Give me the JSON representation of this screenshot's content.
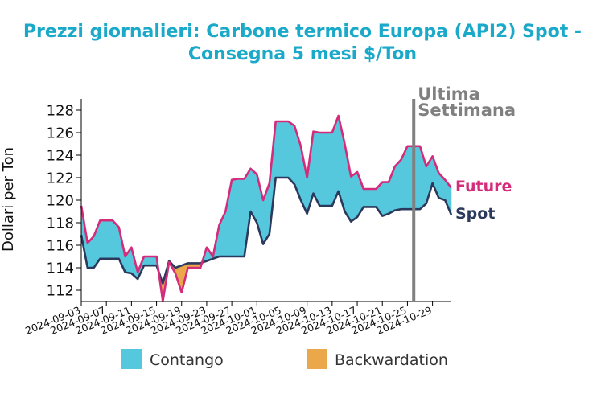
{
  "title_line1": "Prezzi giornalieri: Carbone termico Europa (API2) Spot -",
  "title_line2": "Consegna 5 mesi $/Ton",
  "chart_data": {
    "type": "area",
    "title": "Prezzi giornalieri: Carbone termico Europa (API2) Spot - Consegna 5 mesi $/Ton",
    "ylabel": "Dollari per Ton",
    "xlabel": "",
    "ylim": [
      111,
      129
    ],
    "yticks": [
      112,
      114,
      116,
      118,
      120,
      122,
      124,
      126,
      128
    ],
    "xlim": [
      "2024-09-03",
      "2024-11-01"
    ],
    "xticks": [
      "2024-09-03",
      "2024-09-07",
      "2024-09-11",
      "2024-09-15",
      "2024-09-19",
      "2024-09-23",
      "2024-09-27",
      "2024-10-01",
      "2024-10-05",
      "2024-10-09",
      "2024-10-13",
      "2024-10-17",
      "2024-10-21",
      "2024-10-25",
      "2024-10-29"
    ],
    "marker": {
      "date": "2024-10-26",
      "label_line1": "Ultima",
      "label_line2": "Settimana",
      "color": "#808080"
    },
    "series": [
      {
        "name": "Future",
        "color": "#d42b7b",
        "points": [
          [
            "2024-09-03",
            119.5
          ],
          [
            "2024-09-04",
            116.2
          ],
          [
            "2024-09-05",
            116.8
          ],
          [
            "2024-09-06",
            118.2
          ],
          [
            "2024-09-07",
            118.2
          ],
          [
            "2024-09-08",
            118.2
          ],
          [
            "2024-09-09",
            117.6
          ],
          [
            "2024-09-10",
            115.0
          ],
          [
            "2024-09-11",
            115.8
          ],
          [
            "2024-09-12",
            113.6
          ],
          [
            "2024-09-13",
            115.0
          ],
          [
            "2024-09-14",
            115.0
          ],
          [
            "2024-09-15",
            115.0
          ],
          [
            "2024-09-16",
            111.0
          ],
          [
            "2024-09-17",
            114.5
          ],
          [
            "2024-09-18",
            113.5
          ],
          [
            "2024-09-19",
            111.8
          ],
          [
            "2024-09-20",
            114.0
          ],
          [
            "2024-09-21",
            114.0
          ],
          [
            "2024-09-22",
            114.0
          ],
          [
            "2024-09-23",
            115.8
          ],
          [
            "2024-09-24",
            115.0
          ],
          [
            "2024-09-25",
            117.8
          ],
          [
            "2024-09-26",
            119.0
          ],
          [
            "2024-09-27",
            121.8
          ],
          [
            "2024-09-28",
            121.9
          ],
          [
            "2024-09-29",
            121.9
          ],
          [
            "2024-09-30",
            122.8
          ],
          [
            "2024-10-01",
            122.3
          ],
          [
            "2024-10-02",
            120.0
          ],
          [
            "2024-10-03",
            121.5
          ],
          [
            "2024-10-04",
            127.0
          ],
          [
            "2024-10-05",
            127.0
          ],
          [
            "2024-10-06",
            127.0
          ],
          [
            "2024-10-07",
            126.6
          ],
          [
            "2024-10-08",
            124.8
          ],
          [
            "2024-10-09",
            122.0
          ],
          [
            "2024-10-10",
            126.1
          ],
          [
            "2024-10-11",
            126.0
          ],
          [
            "2024-10-12",
            126.0
          ],
          [
            "2024-10-13",
            126.0
          ],
          [
            "2024-10-14",
            127.5
          ],
          [
            "2024-10-15",
            125.0
          ],
          [
            "2024-10-16",
            122.1
          ],
          [
            "2024-10-17",
            122.5
          ],
          [
            "2024-10-18",
            121.0
          ],
          [
            "2024-10-19",
            121.0
          ],
          [
            "2024-10-20",
            121.0
          ],
          [
            "2024-10-21",
            121.6
          ],
          [
            "2024-10-22",
            121.6
          ],
          [
            "2024-10-23",
            123.0
          ],
          [
            "2024-10-24",
            123.6
          ],
          [
            "2024-10-25",
            124.8
          ],
          [
            "2024-10-26",
            124.8
          ],
          [
            "2024-10-27",
            124.8
          ],
          [
            "2024-10-28",
            123.0
          ],
          [
            "2024-10-29",
            123.9
          ],
          [
            "2024-10-30",
            122.4
          ],
          [
            "2024-10-31",
            121.8
          ],
          [
            "2024-11-01",
            121.1
          ]
        ]
      },
      {
        "name": "Spot",
        "color": "#2b3a5c",
        "points": [
          [
            "2024-09-03",
            116.9
          ],
          [
            "2024-09-04",
            114.0
          ],
          [
            "2024-09-05",
            114.0
          ],
          [
            "2024-09-06",
            114.8
          ],
          [
            "2024-09-07",
            114.8
          ],
          [
            "2024-09-08",
            114.8
          ],
          [
            "2024-09-09",
            114.8
          ],
          [
            "2024-09-10",
            113.6
          ],
          [
            "2024-09-11",
            113.5
          ],
          [
            "2024-09-12",
            113.0
          ],
          [
            "2024-09-13",
            114.2
          ],
          [
            "2024-09-14",
            114.2
          ],
          [
            "2024-09-15",
            114.2
          ],
          [
            "2024-09-16",
            112.6
          ],
          [
            "2024-09-17",
            114.6
          ],
          [
            "2024-09-18",
            114.0
          ],
          [
            "2024-09-19",
            114.2
          ],
          [
            "2024-09-20",
            114.4
          ],
          [
            "2024-09-21",
            114.4
          ],
          [
            "2024-09-22",
            114.4
          ],
          [
            "2024-09-23",
            114.6
          ],
          [
            "2024-09-24",
            114.8
          ],
          [
            "2024-09-25",
            115.0
          ],
          [
            "2024-09-26",
            115.0
          ],
          [
            "2024-09-27",
            115.0
          ],
          [
            "2024-09-28",
            115.0
          ],
          [
            "2024-09-29",
            115.0
          ],
          [
            "2024-09-30",
            119.0
          ],
          [
            "2024-10-01",
            118.0
          ],
          [
            "2024-10-02",
            116.1
          ],
          [
            "2024-10-03",
            117.0
          ],
          [
            "2024-10-04",
            122.0
          ],
          [
            "2024-10-05",
            122.0
          ],
          [
            "2024-10-06",
            122.0
          ],
          [
            "2024-10-07",
            121.4
          ],
          [
            "2024-10-08",
            120.0
          ],
          [
            "2024-10-09",
            118.8
          ],
          [
            "2024-10-10",
            120.6
          ],
          [
            "2024-10-11",
            119.5
          ],
          [
            "2024-10-12",
            119.5
          ],
          [
            "2024-10-13",
            119.5
          ],
          [
            "2024-10-14",
            120.8
          ],
          [
            "2024-10-15",
            119.0
          ],
          [
            "2024-10-16",
            118.1
          ],
          [
            "2024-10-17",
            118.5
          ],
          [
            "2024-10-18",
            119.4
          ],
          [
            "2024-10-19",
            119.4
          ],
          [
            "2024-10-20",
            119.4
          ],
          [
            "2024-10-21",
            118.6
          ],
          [
            "2024-10-22",
            118.8
          ],
          [
            "2024-10-23",
            119.1
          ],
          [
            "2024-10-24",
            119.2
          ],
          [
            "2024-10-25",
            119.2
          ],
          [
            "2024-10-26",
            119.2
          ],
          [
            "2024-10-27",
            119.2
          ],
          [
            "2024-10-28",
            119.7
          ],
          [
            "2024-10-29",
            121.5
          ],
          [
            "2024-10-30",
            120.2
          ],
          [
            "2024-10-31",
            120.0
          ],
          [
            "2024-11-01",
            118.7
          ]
        ]
      }
    ],
    "fills": [
      {
        "name": "Contango",
        "color": "#56c8de",
        "condition": "Future >= Spot"
      },
      {
        "name": "Backwardation",
        "color": "#eba84a",
        "condition": "Future < Spot"
      }
    ],
    "legend": {
      "placement": "bottom",
      "items": [
        "Contango",
        "Backwardation"
      ]
    },
    "line_labels": {
      "placement": "right",
      "items": [
        "Future",
        "Spot"
      ]
    },
    "grid": false
  }
}
